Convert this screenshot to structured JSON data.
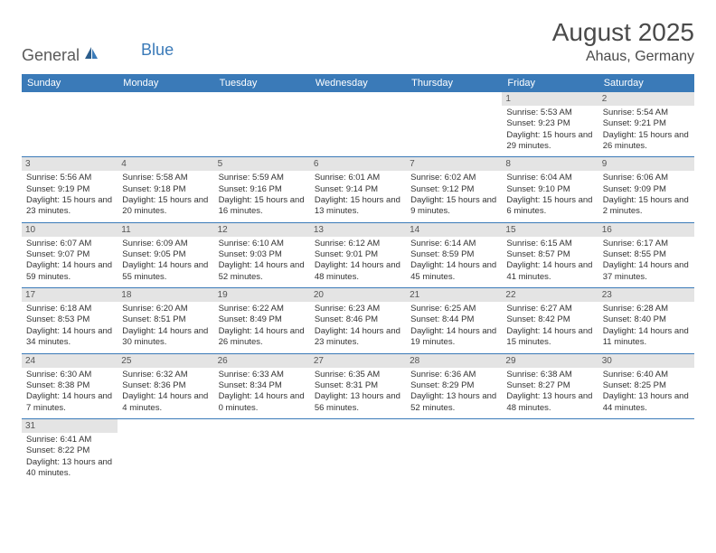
{
  "logo": {
    "text_general": "General",
    "text_blue": "Blue"
  },
  "title": "August 2025",
  "location": "Ahaus, Germany",
  "colors": {
    "header_bg": "#3a7ab8",
    "header_text": "#ffffff",
    "day_number_bg": "#e4e4e4",
    "border": "#3a7ab8",
    "title_color": "#4a4a4a",
    "logo_general": "#5a5a5a",
    "logo_blue": "#3a7ab8"
  },
  "days_of_week": [
    "Sunday",
    "Monday",
    "Tuesday",
    "Wednesday",
    "Thursday",
    "Friday",
    "Saturday"
  ],
  "weeks": [
    [
      null,
      null,
      null,
      null,
      null,
      {
        "num": "1",
        "sunrise": "Sunrise: 5:53 AM",
        "sunset": "Sunset: 9:23 PM",
        "daylight": "Daylight: 15 hours and 29 minutes."
      },
      {
        "num": "2",
        "sunrise": "Sunrise: 5:54 AM",
        "sunset": "Sunset: 9:21 PM",
        "daylight": "Daylight: 15 hours and 26 minutes."
      }
    ],
    [
      {
        "num": "3",
        "sunrise": "Sunrise: 5:56 AM",
        "sunset": "Sunset: 9:19 PM",
        "daylight": "Daylight: 15 hours and 23 minutes."
      },
      {
        "num": "4",
        "sunrise": "Sunrise: 5:58 AM",
        "sunset": "Sunset: 9:18 PM",
        "daylight": "Daylight: 15 hours and 20 minutes."
      },
      {
        "num": "5",
        "sunrise": "Sunrise: 5:59 AM",
        "sunset": "Sunset: 9:16 PM",
        "daylight": "Daylight: 15 hours and 16 minutes."
      },
      {
        "num": "6",
        "sunrise": "Sunrise: 6:01 AM",
        "sunset": "Sunset: 9:14 PM",
        "daylight": "Daylight: 15 hours and 13 minutes."
      },
      {
        "num": "7",
        "sunrise": "Sunrise: 6:02 AM",
        "sunset": "Sunset: 9:12 PM",
        "daylight": "Daylight: 15 hours and 9 minutes."
      },
      {
        "num": "8",
        "sunrise": "Sunrise: 6:04 AM",
        "sunset": "Sunset: 9:10 PM",
        "daylight": "Daylight: 15 hours and 6 minutes."
      },
      {
        "num": "9",
        "sunrise": "Sunrise: 6:06 AM",
        "sunset": "Sunset: 9:09 PM",
        "daylight": "Daylight: 15 hours and 2 minutes."
      }
    ],
    [
      {
        "num": "10",
        "sunrise": "Sunrise: 6:07 AM",
        "sunset": "Sunset: 9:07 PM",
        "daylight": "Daylight: 14 hours and 59 minutes."
      },
      {
        "num": "11",
        "sunrise": "Sunrise: 6:09 AM",
        "sunset": "Sunset: 9:05 PM",
        "daylight": "Daylight: 14 hours and 55 minutes."
      },
      {
        "num": "12",
        "sunrise": "Sunrise: 6:10 AM",
        "sunset": "Sunset: 9:03 PM",
        "daylight": "Daylight: 14 hours and 52 minutes."
      },
      {
        "num": "13",
        "sunrise": "Sunrise: 6:12 AM",
        "sunset": "Sunset: 9:01 PM",
        "daylight": "Daylight: 14 hours and 48 minutes."
      },
      {
        "num": "14",
        "sunrise": "Sunrise: 6:14 AM",
        "sunset": "Sunset: 8:59 PM",
        "daylight": "Daylight: 14 hours and 45 minutes."
      },
      {
        "num": "15",
        "sunrise": "Sunrise: 6:15 AM",
        "sunset": "Sunset: 8:57 PM",
        "daylight": "Daylight: 14 hours and 41 minutes."
      },
      {
        "num": "16",
        "sunrise": "Sunrise: 6:17 AM",
        "sunset": "Sunset: 8:55 PM",
        "daylight": "Daylight: 14 hours and 37 minutes."
      }
    ],
    [
      {
        "num": "17",
        "sunrise": "Sunrise: 6:18 AM",
        "sunset": "Sunset: 8:53 PM",
        "daylight": "Daylight: 14 hours and 34 minutes."
      },
      {
        "num": "18",
        "sunrise": "Sunrise: 6:20 AM",
        "sunset": "Sunset: 8:51 PM",
        "daylight": "Daylight: 14 hours and 30 minutes."
      },
      {
        "num": "19",
        "sunrise": "Sunrise: 6:22 AM",
        "sunset": "Sunset: 8:49 PM",
        "daylight": "Daylight: 14 hours and 26 minutes."
      },
      {
        "num": "20",
        "sunrise": "Sunrise: 6:23 AM",
        "sunset": "Sunset: 8:46 PM",
        "daylight": "Daylight: 14 hours and 23 minutes."
      },
      {
        "num": "21",
        "sunrise": "Sunrise: 6:25 AM",
        "sunset": "Sunset: 8:44 PM",
        "daylight": "Daylight: 14 hours and 19 minutes."
      },
      {
        "num": "22",
        "sunrise": "Sunrise: 6:27 AM",
        "sunset": "Sunset: 8:42 PM",
        "daylight": "Daylight: 14 hours and 15 minutes."
      },
      {
        "num": "23",
        "sunrise": "Sunrise: 6:28 AM",
        "sunset": "Sunset: 8:40 PM",
        "daylight": "Daylight: 14 hours and 11 minutes."
      }
    ],
    [
      {
        "num": "24",
        "sunrise": "Sunrise: 6:30 AM",
        "sunset": "Sunset: 8:38 PM",
        "daylight": "Daylight: 14 hours and 7 minutes."
      },
      {
        "num": "25",
        "sunrise": "Sunrise: 6:32 AM",
        "sunset": "Sunset: 8:36 PM",
        "daylight": "Daylight: 14 hours and 4 minutes."
      },
      {
        "num": "26",
        "sunrise": "Sunrise: 6:33 AM",
        "sunset": "Sunset: 8:34 PM",
        "daylight": "Daylight: 14 hours and 0 minutes."
      },
      {
        "num": "27",
        "sunrise": "Sunrise: 6:35 AM",
        "sunset": "Sunset: 8:31 PM",
        "daylight": "Daylight: 13 hours and 56 minutes."
      },
      {
        "num": "28",
        "sunrise": "Sunrise: 6:36 AM",
        "sunset": "Sunset: 8:29 PM",
        "daylight": "Daylight: 13 hours and 52 minutes."
      },
      {
        "num": "29",
        "sunrise": "Sunrise: 6:38 AM",
        "sunset": "Sunset: 8:27 PM",
        "daylight": "Daylight: 13 hours and 48 minutes."
      },
      {
        "num": "30",
        "sunrise": "Sunrise: 6:40 AM",
        "sunset": "Sunset: 8:25 PM",
        "daylight": "Daylight: 13 hours and 44 minutes."
      }
    ],
    [
      {
        "num": "31",
        "sunrise": "Sunrise: 6:41 AM",
        "sunset": "Sunset: 8:22 PM",
        "daylight": "Daylight: 13 hours and 40 minutes."
      },
      null,
      null,
      null,
      null,
      null,
      null
    ]
  ]
}
